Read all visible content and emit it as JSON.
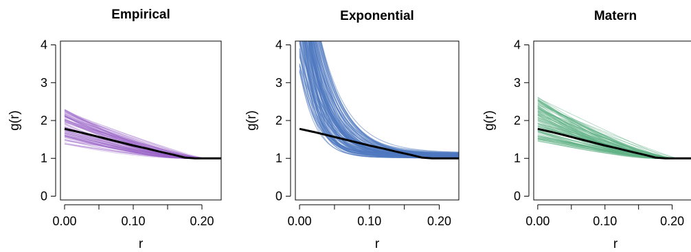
{
  "chart_data": [
    {
      "type": "line",
      "title": "Empirical",
      "xlabel": "r",
      "ylabel": "g(r)",
      "xlim": [
        -0.006,
        0.228
      ],
      "ylim": [
        -0.1,
        4.1
      ],
      "xticks": [
        0.0,
        0.05,
        0.1,
        0.15,
        0.2
      ],
      "xtick_labels": [
        "0.00",
        "",
        "0.10",
        "",
        "0.20"
      ],
      "yticks": [
        0,
        1,
        2,
        3,
        4
      ],
      "ytick_labels": [
        "0",
        "1",
        "2",
        "3",
        "4"
      ],
      "envelope_color": "#9a63c9",
      "envelope": {
        "description_series": "simulated curves (many thin translucent lines)",
        "r0_range": [
          1.38,
          2.3
        ],
        "merge_r": 0.19,
        "end_value": 1.0
      },
      "series": [
        {
          "x": [
            0.0,
            0.02,
            0.04,
            0.06,
            0.08,
            0.1,
            0.12,
            0.14,
            0.16,
            0.175,
            0.19,
            0.21,
            0.228
          ],
          "y": [
            1.78,
            1.7,
            1.61,
            1.52,
            1.43,
            1.34,
            1.26,
            1.17,
            1.09,
            1.02,
            1.0,
            1.0,
            1.0
          ]
        }
      ]
    },
    {
      "type": "line",
      "title": "Exponential",
      "xlabel": "r",
      "ylabel": "g(r)",
      "xlim": [
        -0.006,
        0.228
      ],
      "ylim": [
        -0.1,
        4.1
      ],
      "xticks": [
        0.0,
        0.05,
        0.1,
        0.15,
        0.2
      ],
      "xtick_labels": [
        "0.00",
        "",
        "0.10",
        "",
        "0.20"
      ],
      "yticks": [
        0,
        1,
        2,
        3,
        4
      ],
      "ytick_labels": [
        "0",
        "1",
        "2",
        "3",
        "4"
      ],
      "envelope_color": "#4e79c0",
      "envelope": {
        "description_series": "simulated curves (many thin translucent lines)",
        "r0_range": [
          3.2,
          8.0
        ],
        "end_range": [
          1.0,
          1.15
        ],
        "end_value": 1.0
      },
      "series": [
        {
          "x": [
            0.0,
            0.02,
            0.04,
            0.06,
            0.08,
            0.1,
            0.12,
            0.14,
            0.16,
            0.175,
            0.19,
            0.21,
            0.228
          ],
          "y": [
            1.78,
            1.7,
            1.61,
            1.52,
            1.43,
            1.34,
            1.26,
            1.17,
            1.09,
            1.02,
            1.0,
            1.0,
            1.0
          ]
        }
      ]
    },
    {
      "type": "line",
      "title": "Matern",
      "xlabel": "r",
      "ylabel": "g(r)",
      "xlim": [
        -0.006,
        0.228
      ],
      "ylim": [
        -0.1,
        4.1
      ],
      "xticks": [
        0.0,
        0.05,
        0.1,
        0.15,
        0.2
      ],
      "xtick_labels": [
        "0.00",
        "",
        "0.10",
        "",
        "0.20"
      ],
      "yticks": [
        0,
        1,
        2,
        3,
        4
      ],
      "ytick_labels": [
        "0",
        "1",
        "2",
        "3",
        "4"
      ],
      "envelope_color": "#5fb286",
      "envelope": {
        "description_series": "simulated curves (many thin translucent lines)",
        "r0_range": [
          1.45,
          2.65
        ],
        "merge_r": 0.19,
        "end_value": 1.0
      },
      "series": [
        {
          "x": [
            0.0,
            0.02,
            0.04,
            0.06,
            0.08,
            0.1,
            0.12,
            0.14,
            0.16,
            0.175,
            0.19,
            0.21,
            0.228
          ],
          "y": [
            1.78,
            1.7,
            1.61,
            1.52,
            1.43,
            1.34,
            1.26,
            1.17,
            1.09,
            1.02,
            1.0,
            1.0,
            1.0
          ]
        }
      ]
    }
  ]
}
